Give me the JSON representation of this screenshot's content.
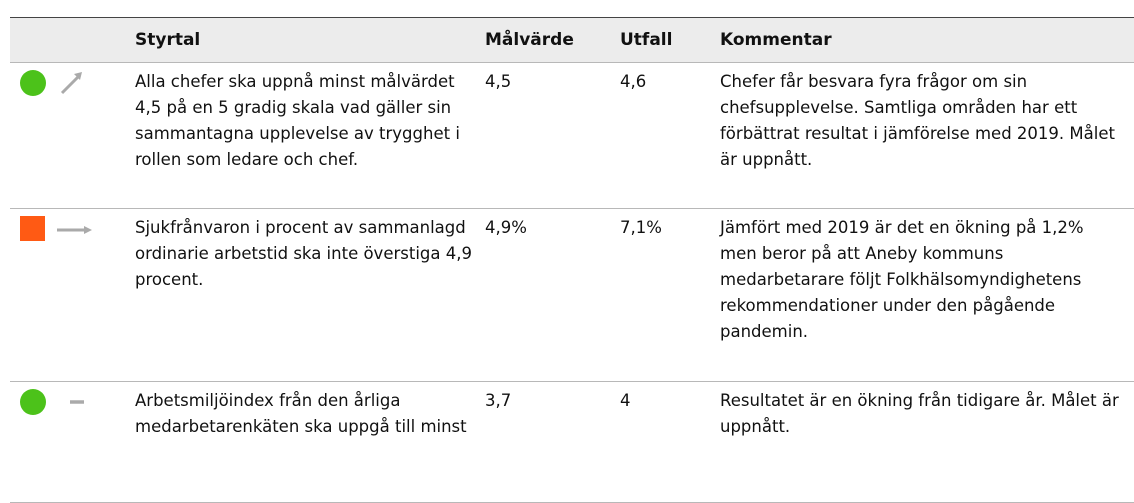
{
  "table": {
    "header": [
      "Styrtal",
      "Målvärde",
      "Utfall",
      "Kommentar"
    ],
    "rows": [
      [
        "Alla chefer ska uppnå minst målvärdet 4,5 på en 5 gradig skala vad gäller sin sammantagna upplevelse av trygghet i rollen som ledare och chef.",
        "4,5",
        "4,6",
        "Chefer får besvara fyra frågor om sin chefsupplevelse. Samtliga områden har ett förbättrat resultat i jämförelse med 2019. Målet är uppnått."
      ],
      [
        "Sjukfrånvaron i procent av sammanlagd ordinarie arbetstid ska inte överstiga 4,9 procent.",
        "4,9%",
        "7,1%",
        "Jämfört med 2019 är det en ökning på 1,2% men beror på att Aneby kommuns medarbetarare följt Folkhälsomyndighetens rekommendationer under den pågående pandemin."
      ],
      [
        "Arbetsmiljöindex från den årliga medarbetarenkäten ska uppgå till minst",
        "3,7",
        "4",
        "Resultatet är en ökning från tidigare år. Målet är uppnått."
      ]
    ]
  }
}
